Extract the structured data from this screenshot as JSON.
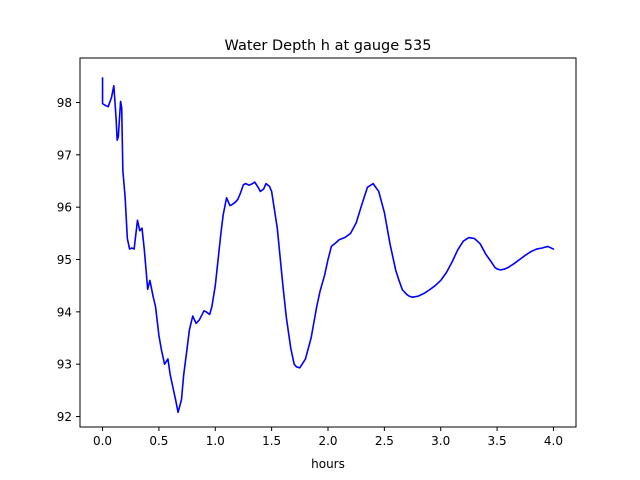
{
  "chart_data": {
    "type": "line",
    "title": "Water Depth h at gauge 535",
    "xlabel": "hours",
    "ylabel": "",
    "xlim": [
      -0.2,
      4.2
    ],
    "ylim": [
      91.8,
      98.85
    ],
    "xticks": [
      0.0,
      0.5,
      1.0,
      1.5,
      2.0,
      2.5,
      3.0,
      3.5,
      4.0
    ],
    "xtick_labels": [
      "0.0",
      "0.5",
      "1.0",
      "1.5",
      "2.0",
      "2.5",
      "3.0",
      "3.5",
      "4.0"
    ],
    "yticks": [
      92,
      93,
      94,
      95,
      96,
      97,
      98
    ],
    "ytick_labels": [
      "92",
      "93",
      "94",
      "95",
      "96",
      "97",
      "98"
    ],
    "grid": false,
    "legend": "none",
    "series": [
      {
        "color": "#0000ff",
        "x": [
          0.0,
          0.0,
          0.02,
          0.05,
          0.08,
          0.1,
          0.12,
          0.13,
          0.14,
          0.16,
          0.17,
          0.18,
          0.2,
          0.22,
          0.24,
          0.26,
          0.28,
          0.31,
          0.33,
          0.35,
          0.37,
          0.39,
          0.4,
          0.42,
          0.45,
          0.47,
          0.5,
          0.52,
          0.55,
          0.58,
          0.6,
          0.62,
          0.65,
          0.67,
          0.7,
          0.72,
          0.75,
          0.77,
          0.8,
          0.83,
          0.86,
          0.9,
          0.92,
          0.95,
          0.97,
          1.0,
          1.02,
          1.05,
          1.07,
          1.1,
          1.13,
          1.15,
          1.18,
          1.2,
          1.22,
          1.25,
          1.27,
          1.3,
          1.33,
          1.35,
          1.38,
          1.4,
          1.43,
          1.45,
          1.48,
          1.5,
          1.55,
          1.6,
          1.63,
          1.67,
          1.7,
          1.72,
          1.75,
          1.8,
          1.85,
          1.9,
          1.93,
          1.97,
          2.0,
          2.03,
          2.07,
          2.1,
          2.15,
          2.2,
          2.25,
          2.3,
          2.35,
          2.4,
          2.45,
          2.5,
          2.55,
          2.6,
          2.63,
          2.66,
          2.7,
          2.72,
          2.75,
          2.8,
          2.85,
          2.9,
          2.95,
          3.0,
          3.05,
          3.1,
          3.15,
          3.2,
          3.25,
          3.3,
          3.35,
          3.4,
          3.45,
          3.48,
          3.5,
          3.53,
          3.57,
          3.6,
          3.65,
          3.7,
          3.75,
          3.8,
          3.85,
          3.9,
          3.95,
          4.0
        ],
        "y": [
          98.47,
          97.98,
          97.95,
          97.92,
          98.1,
          98.32,
          97.7,
          97.28,
          97.35,
          98.02,
          97.9,
          96.7,
          96.2,
          95.4,
          95.2,
          95.22,
          95.2,
          95.75,
          95.55,
          95.6,
          95.2,
          94.7,
          94.43,
          94.6,
          94.28,
          94.1,
          93.55,
          93.3,
          93.0,
          93.1,
          92.8,
          92.6,
          92.3,
          92.08,
          92.32,
          92.8,
          93.3,
          93.65,
          93.92,
          93.78,
          93.85,
          94.02,
          94.0,
          93.95,
          94.1,
          94.5,
          94.9,
          95.5,
          95.85,
          96.18,
          96.03,
          96.05,
          96.1,
          96.15,
          96.25,
          96.43,
          96.45,
          96.42,
          96.45,
          96.48,
          96.38,
          96.3,
          96.35,
          96.45,
          96.4,
          96.3,
          95.6,
          94.5,
          93.9,
          93.3,
          93.0,
          92.95,
          92.93,
          93.1,
          93.5,
          94.1,
          94.4,
          94.7,
          95.0,
          95.25,
          95.32,
          95.38,
          95.42,
          95.5,
          95.7,
          96.05,
          96.38,
          96.45,
          96.3,
          95.9,
          95.3,
          94.8,
          94.6,
          94.42,
          94.33,
          94.3,
          94.28,
          94.3,
          94.35,
          94.42,
          94.5,
          94.6,
          94.75,
          94.95,
          95.18,
          95.35,
          95.42,
          95.4,
          95.3,
          95.1,
          94.95,
          94.85,
          94.82,
          94.8,
          94.82,
          94.85,
          94.92,
          95.0,
          95.08,
          95.15,
          95.2,
          95.22,
          95.25,
          95.2
        ]
      }
    ]
  }
}
